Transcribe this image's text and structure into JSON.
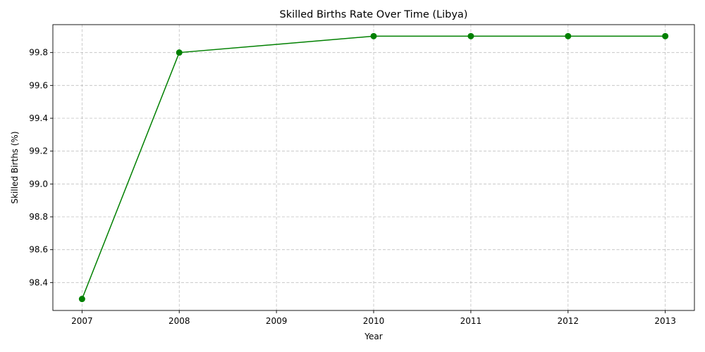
{
  "chart_data": {
    "type": "line",
    "title": "Skilled Births Rate Over Time (Libya)",
    "xlabel": "Year",
    "ylabel": "Skilled Births (%)",
    "x": [
      2007,
      2008,
      2010,
      2011,
      2012,
      2013
    ],
    "series": [
      {
        "values": [
          98.3,
          99.8,
          99.9,
          99.9,
          99.9,
          99.9
        ],
        "color": "#008000",
        "marker": "circle"
      }
    ],
    "xlim": [
      2006.7,
      2013.3
    ],
    "ylim": [
      98.23,
      99.97
    ],
    "xticks": [
      "2007",
      "2008",
      "2009",
      "2010",
      "2011",
      "2012",
      "2013"
    ],
    "yticks": [
      "98.4",
      "98.6",
      "98.8",
      "99.0",
      "99.2",
      "99.4",
      "99.6",
      "99.8"
    ],
    "grid": true,
    "legend": "none"
  }
}
